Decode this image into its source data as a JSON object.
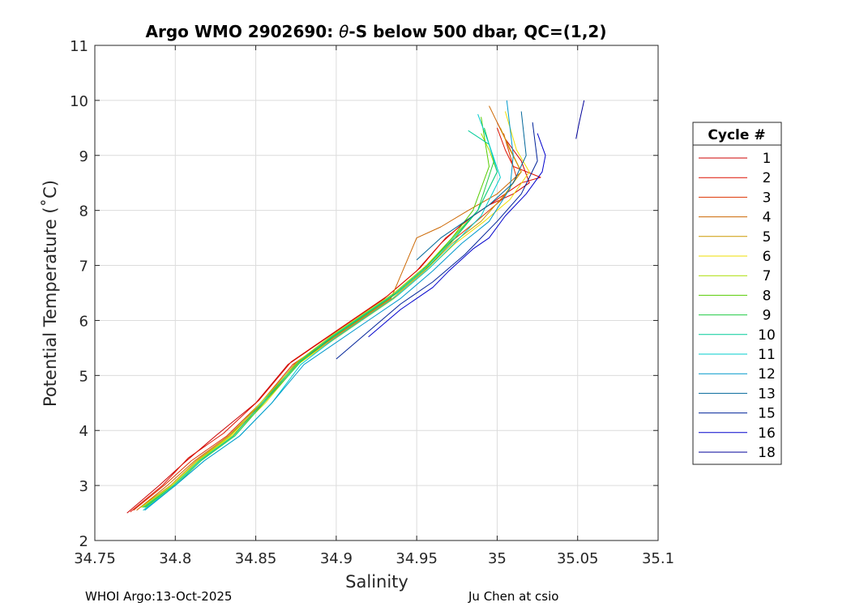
{
  "chart_data": {
    "type": "line",
    "title_prefix": "Argo WMO 2902690: ",
    "title_theta": "θ",
    "title_suffix": "-S below 500 dbar,  QC=(1,2)",
    "xlabel": "Salinity",
    "ylabel": "Potential Temperature (˚C)",
    "xlim": [
      34.75,
      35.1
    ],
    "ylim": [
      2,
      11
    ],
    "xticks": [
      34.75,
      34.8,
      34.85,
      34.9,
      34.95,
      35,
      35.05,
      35.1
    ],
    "xtick_labels": [
      "34.75",
      "34.8",
      "34.85",
      "34.9",
      "34.95",
      "35",
      "35.05",
      "35.1"
    ],
    "yticks": [
      2,
      3,
      4,
      5,
      6,
      7,
      8,
      9,
      10,
      11
    ],
    "ytick_labels": [
      "2",
      "3",
      "4",
      "5",
      "6",
      "7",
      "8",
      "9",
      "10",
      "11"
    ],
    "grid": true,
    "legend_title": "Cycle #",
    "legend_position": "right",
    "series": [
      {
        "name": "1",
        "color": "#cc0000",
        "x": [
          34.77,
          34.79,
          34.805,
          34.825,
          34.85,
          34.87,
          34.89,
          34.91,
          34.93,
          34.95,
          34.965,
          34.98,
          34.995,
          35.01,
          35.02,
          35.015,
          35.005,
          35.0
        ],
        "y": [
          2.5,
          3.0,
          3.4,
          3.9,
          4.5,
          5.2,
          5.6,
          6.0,
          6.4,
          6.9,
          7.4,
          7.8,
          8.1,
          8.3,
          8.5,
          8.9,
          9.3,
          9.6
        ]
      },
      {
        "name": "2",
        "color": "#dd1100",
        "x": [
          34.772,
          34.792,
          34.808,
          34.83,
          34.852,
          34.872,
          34.892,
          34.912,
          34.932,
          34.952,
          34.968,
          34.985,
          35.0,
          35.015,
          35.027,
          35.01,
          35.005,
          35.0
        ],
        "y": [
          2.52,
          3.0,
          3.5,
          3.95,
          4.55,
          5.25,
          5.65,
          6.05,
          6.45,
          6.95,
          7.5,
          7.9,
          8.2,
          8.5,
          8.6,
          8.8,
          9.1,
          9.5
        ]
      },
      {
        "name": "3",
        "color": "#dd3300",
        "x": [
          34.774,
          34.793,
          34.81,
          34.832,
          34.853,
          34.873,
          34.893,
          34.913,
          34.933,
          34.953,
          34.97,
          34.987,
          35.003,
          35.012,
          35.008,
          35.004
        ],
        "y": [
          2.55,
          3.0,
          3.45,
          3.9,
          4.5,
          5.2,
          5.6,
          6.0,
          6.4,
          6.9,
          7.4,
          7.8,
          8.2,
          8.6,
          9.0,
          9.4
        ]
      },
      {
        "name": "4",
        "color": "#cc6600",
        "x": [
          34.776,
          34.795,
          34.812,
          34.833,
          34.854,
          34.874,
          34.894,
          34.914,
          34.934,
          34.95,
          34.965,
          34.982,
          35.0,
          35.015,
          35.01,
          34.995
        ],
        "y": [
          2.55,
          3.0,
          3.45,
          3.9,
          4.5,
          5.2,
          5.6,
          6.0,
          6.4,
          7.5,
          7.7,
          8.0,
          8.3,
          8.7,
          9.0,
          9.9
        ]
      },
      {
        "name": "5",
        "color": "#cc9900",
        "x": [
          34.778,
          34.797,
          34.813,
          34.834,
          34.855,
          34.875,
          34.895,
          34.915,
          34.935,
          34.955,
          34.972,
          34.99,
          35.005,
          35.015,
          35.008,
          35.002
        ],
        "y": [
          2.6,
          3.0,
          3.45,
          3.9,
          4.5,
          5.2,
          5.6,
          6.0,
          6.4,
          6.9,
          7.4,
          7.8,
          8.3,
          8.7,
          9.1,
          9.5
        ]
      },
      {
        "name": "6",
        "color": "#eedd00",
        "x": [
          34.78,
          34.798,
          34.814,
          34.835,
          34.856,
          34.876,
          34.896,
          34.916,
          34.936,
          34.956,
          34.974,
          34.992,
          35.008,
          35.02,
          35.012,
          35.005
        ],
        "y": [
          2.6,
          3.0,
          3.45,
          3.9,
          4.5,
          5.2,
          5.6,
          6.0,
          6.4,
          6.9,
          7.4,
          7.8,
          8.2,
          8.7,
          9.1,
          9.8
        ]
      },
      {
        "name": "7",
        "color": "#aadd00",
        "x": [
          34.779,
          34.798,
          34.814,
          34.834,
          34.856,
          34.876,
          34.896,
          34.916,
          34.936,
          34.956,
          34.972,
          34.988,
          35.0,
          34.995,
          34.99
        ],
        "y": [
          2.6,
          3.0,
          3.45,
          3.9,
          4.6,
          5.25,
          5.7,
          6.1,
          6.5,
          7.0,
          7.5,
          8.0,
          8.7,
          9.1,
          9.4
        ]
      },
      {
        "name": "8",
        "color": "#55cc00",
        "x": [
          34.781,
          34.799,
          34.815,
          34.836,
          34.857,
          34.877,
          34.897,
          34.917,
          34.937,
          34.957,
          34.972,
          34.985,
          34.995,
          34.99
        ],
        "y": [
          2.6,
          3.0,
          3.45,
          3.9,
          4.6,
          5.25,
          5.7,
          6.1,
          6.5,
          7.0,
          7.5,
          8.0,
          8.8,
          9.7
        ]
      },
      {
        "name": "9",
        "color": "#22cc44",
        "x": [
          34.782,
          34.8,
          34.816,
          34.837,
          34.858,
          34.878,
          34.898,
          34.918,
          34.938,
          34.958,
          34.974,
          34.988,
          34.998,
          34.992
        ],
        "y": [
          2.6,
          3.0,
          3.45,
          3.9,
          4.6,
          5.25,
          5.7,
          6.1,
          6.5,
          7.0,
          7.5,
          8.0,
          8.9,
          9.5
        ]
      },
      {
        "name": "10",
        "color": "#00cc99",
        "x": [
          34.78,
          34.799,
          34.815,
          34.836,
          34.857,
          34.877,
          34.897,
          34.917,
          34.937,
          34.957,
          34.973,
          34.988,
          35.0,
          34.995,
          34.982
        ],
        "y": [
          2.6,
          3.0,
          3.45,
          3.9,
          4.6,
          5.25,
          5.7,
          6.1,
          6.5,
          7.0,
          7.5,
          8.0,
          8.7,
          9.2,
          9.45
        ]
      },
      {
        "name": "11",
        "color": "#00cccc",
        "x": [
          34.78,
          34.8,
          34.818,
          34.84,
          34.86,
          34.878,
          34.898,
          34.918,
          34.938,
          34.958,
          34.975,
          34.99,
          35.002,
          34.995,
          34.988
        ],
        "y": [
          2.55,
          3.0,
          3.45,
          3.9,
          4.5,
          5.2,
          5.65,
          6.05,
          6.45,
          6.95,
          7.45,
          7.9,
          8.6,
          9.2,
          9.75
        ]
      },
      {
        "name": "12",
        "color": "#0099cc",
        "x": [
          34.781,
          34.8,
          34.818,
          34.84,
          34.86,
          34.88,
          34.9,
          34.92,
          34.94,
          34.96,
          34.978,
          34.995,
          35.008,
          35.01,
          35.006
        ],
        "y": [
          2.55,
          3.0,
          3.45,
          3.9,
          4.5,
          5.2,
          5.6,
          6.0,
          6.4,
          6.9,
          7.4,
          7.8,
          8.4,
          9.0,
          10.0
        ]
      },
      {
        "name": "13",
        "color": "#006699",
        "x": [
          34.95,
          34.965,
          34.98,
          34.995,
          35.01,
          35.018,
          35.015
        ],
        "y": [
          7.1,
          7.5,
          7.8,
          8.1,
          8.5,
          9.0,
          9.8
        ]
      },
      {
        "name": "15",
        "color": "#002299",
        "x": [
          34.9,
          34.92,
          34.94,
          34.96,
          34.98,
          35.0,
          35.015,
          35.025,
          35.022
        ],
        "y": [
          5.3,
          5.8,
          6.3,
          6.7,
          7.2,
          7.8,
          8.3,
          8.9,
          9.6
        ]
      },
      {
        "name": "16",
        "color": "#0000cc",
        "x": [
          34.92,
          34.94,
          34.96,
          34.97,
          34.985,
          34.995,
          35.005,
          35.018,
          35.028,
          35.03,
          35.025
        ],
        "y": [
          5.7,
          6.2,
          6.6,
          6.9,
          7.3,
          7.5,
          7.9,
          8.3,
          8.7,
          9.0,
          9.4
        ]
      },
      {
        "name": "18",
        "color": "#000099",
        "x": [
          35.049,
          35.051,
          35.054
        ],
        "y": [
          9.3,
          9.6,
          10.0
        ]
      }
    ]
  },
  "footer": {
    "left": "WHOI Argo:13-Oct-2025",
    "right": "Ju Chen at csio"
  }
}
